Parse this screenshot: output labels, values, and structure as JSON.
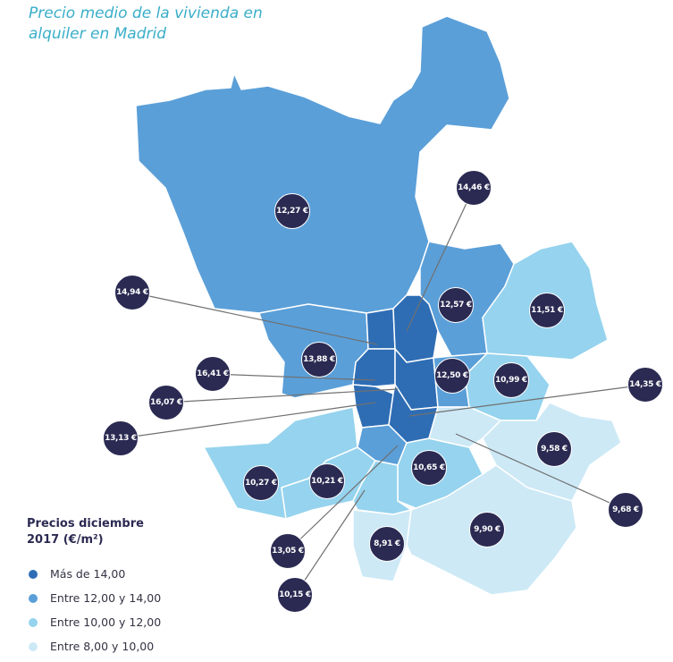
{
  "title": "Precio medio de la vivienda en alquiler en Madrid",
  "legend": {
    "title": "Precios diciembre 2017 (€/m²)",
    "items": [
      {
        "label": "Más de 14,00",
        "color": "#2e6db4"
      },
      {
        "label": "Entre 12,00 y 14,00",
        "color": "#5a9fd8"
      },
      {
        "label": "Entre 10,00 y 12,00",
        "color": "#95d3ee"
      },
      {
        "label": "Entre 8,00 y 10,00",
        "color": "#cde9f6"
      }
    ]
  },
  "prices": [
    "12,27 €",
    "14,46 €",
    "14,94 €",
    "12,57 €",
    "11,51 €",
    "13,88 €",
    "16,41 €",
    "12,50 €",
    "10,99 €",
    "14,35 €",
    "16,07 €",
    "13,13 €",
    "9,58 €",
    "10,27 €",
    "10,21 €",
    "10,65 €",
    "9,68 €",
    "13,05 €",
    "8,91 €",
    "9,90 €",
    "10,15 €"
  ]
}
